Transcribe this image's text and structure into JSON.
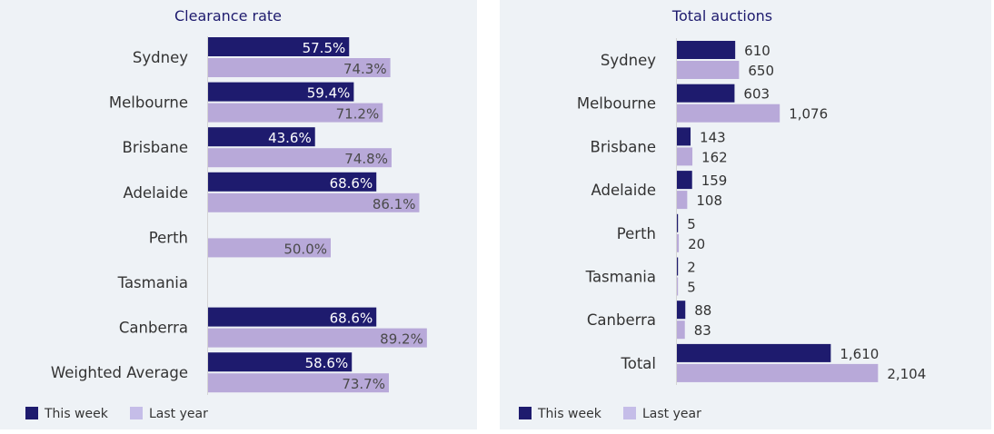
{
  "chart_data": [
    {
      "type": "bar",
      "orientation": "horizontal",
      "title": "Clearance rate",
      "categories": [
        "Sydney",
        "Melbourne",
        "Brisbane",
        "Adelaide",
        "Perth",
        "Tasmania",
        "Canberra",
        "Weighted Average"
      ],
      "series": [
        {
          "name": "This week",
          "values": [
            57.5,
            59.4,
            43.6,
            68.6,
            null,
            null,
            68.6,
            58.6
          ],
          "labels": [
            "57.5%",
            "59.4%",
            "43.6%",
            "68.6%",
            "",
            "",
            "68.6%",
            "58.6%"
          ]
        },
        {
          "name": "Last year",
          "values": [
            74.3,
            71.2,
            74.8,
            86.1,
            50.0,
            null,
            89.2,
            73.7
          ],
          "labels": [
            "74.3%",
            "71.2%",
            "74.8%",
            "86.1%",
            "50.0%",
            "",
            "89.2%",
            "73.7%"
          ]
        }
      ],
      "xlim": [
        0,
        100
      ],
      "legend": "bottom-left"
    },
    {
      "type": "bar",
      "orientation": "horizontal",
      "title": "Total auctions",
      "categories": [
        "Sydney",
        "Melbourne",
        "Brisbane",
        "Adelaide",
        "Perth",
        "Tasmania",
        "Canberra",
        "Total"
      ],
      "series": [
        {
          "name": "This week",
          "values": [
            610,
            603,
            143,
            159,
            5,
            2,
            88,
            1610
          ],
          "labels": [
            "610",
            "603",
            "143",
            "159",
            "5",
            "2",
            "88",
            "1,610"
          ]
        },
        {
          "name": "Last year",
          "values": [
            650,
            1076,
            162,
            108,
            20,
            5,
            83,
            2104
          ],
          "labels": [
            "650",
            "1,076",
            "162",
            "108",
            "20",
            "5",
            "83",
            "2,104"
          ]
        }
      ],
      "xlim": [
        0,
        2500
      ],
      "legend": "bottom-left"
    }
  ],
  "colors": {
    "this_week": "#1e1b6e",
    "last_year": "#b8a9d9",
    "this_week_legend": "#1e1b6e",
    "last_year_legend": "#c5bde8",
    "label_on_dark": "#ffffff",
    "label_on_light": "#4a4a4a",
    "label_outside": "#333333",
    "panel_bg": "#eef2f6",
    "axis": "#d5d5d5"
  }
}
